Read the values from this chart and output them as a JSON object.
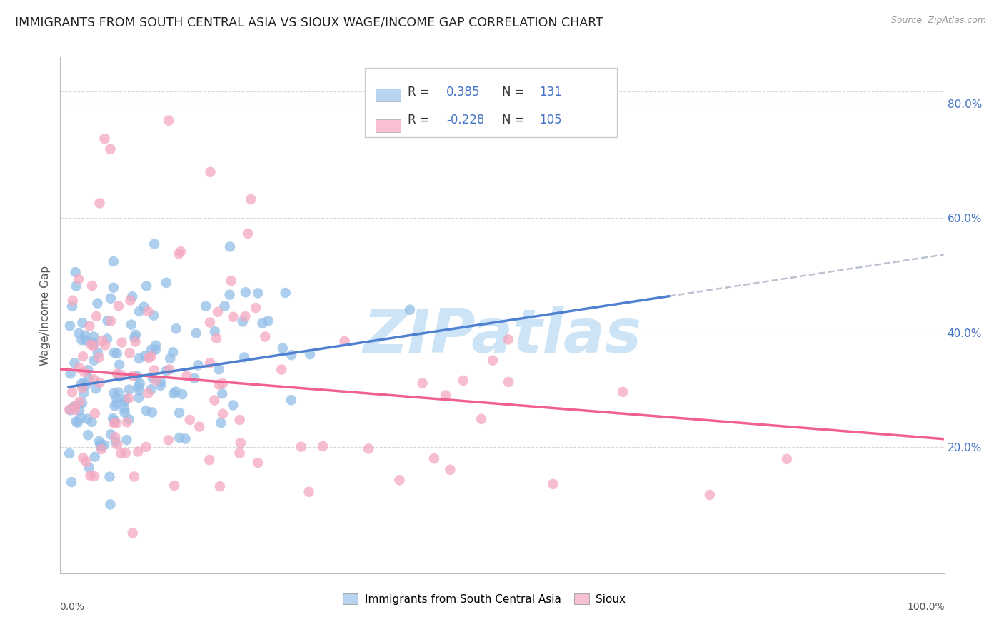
{
  "title": "IMMIGRANTS FROM SOUTH CENTRAL ASIA VS SIOUX WAGE/INCOME GAP CORRELATION CHART",
  "source": "Source: ZipAtlas.com",
  "ylabel": "Wage/Income Gap",
  "yticks": [
    "20.0%",
    "40.0%",
    "60.0%",
    "80.0%"
  ],
  "ytick_vals": [
    0.2,
    0.4,
    0.6,
    0.8
  ],
  "ylim": [
    -0.02,
    0.88
  ],
  "xlim": [
    -0.01,
    1.05
  ],
  "blue_R": 0.385,
  "blue_N": 131,
  "pink_R": -0.228,
  "pink_N": 105,
  "blue_color": "#92bee8",
  "pink_color": "#f5a8c0",
  "trend_blue_solid_color": "#5080d0",
  "trend_blue_dashed_color": "#b0b8c8",
  "trend_pink_color": "#f06090",
  "watermark_text": "ZIPatlas",
  "watermark_color": "#cce4f5",
  "legend_box_blue": "#b8d4f0",
  "legend_box_pink": "#f8c0d0",
  "bg_color": "#ffffff",
  "grid_color": "#d8d8d8",
  "title_fontsize": 12.5,
  "axis_label_fontsize": 11,
  "tick_fontsize": 10,
  "legend_text_color": "#4472c4",
  "legend_r_color_black": "#333333"
}
